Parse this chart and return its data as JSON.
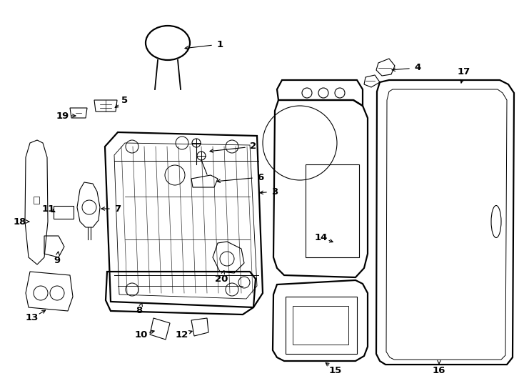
{
  "background_color": "#ffffff",
  "line_color": "#000000",
  "fig_width": 7.34,
  "fig_height": 5.4,
  "dpi": 100
}
